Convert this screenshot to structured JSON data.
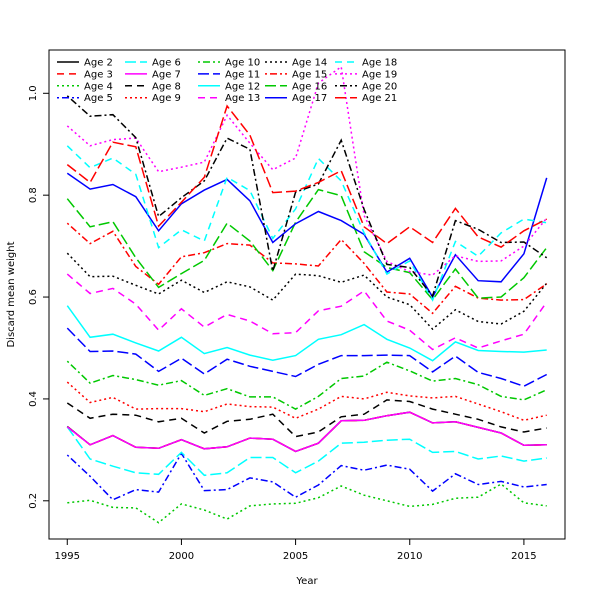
{
  "chart_data": {
    "type": "line",
    "xlabel": "Year",
    "ylabel": "Discard mean weight",
    "xlim": [
      1994.2,
      2016.8
    ],
    "ylim": [
      0.125,
      1.085
    ],
    "xticks": [
      1995,
      2000,
      2005,
      2010,
      2015
    ],
    "yticks": [
      0.2,
      0.4,
      0.6,
      0.8,
      1.0
    ],
    "ytick_labels": [
      "0.2",
      "0.4",
      "0.6",
      "0.8",
      "1.0"
    ],
    "grid": false,
    "legend": "top-left",
    "x": [
      1995,
      1996,
      1997,
      1998,
      1999,
      2000,
      2001,
      2002,
      2003,
      2004,
      2005,
      2006,
      2007,
      2008,
      2009,
      2010,
      2011,
      2012,
      2013,
      2014,
      2015,
      2016
    ],
    "series": [
      {
        "name": "Age 2",
        "color": "#000000",
        "dash": "solid",
        "values": [
          0.346,
          0.31,
          0.328,
          0.305,
          0.303,
          0.32,
          0.302,
          0.306,
          0.323,
          0.321,
          0.297,
          0.313,
          0.357,
          0.358,
          0.367,
          0.374,
          0.353,
          0.355,
          0.344,
          0.333,
          0.309,
          0.31
        ]
      },
      {
        "name": "Age 3",
        "color": "#ff0000",
        "dash": "dashed",
        "values": [
          0.345,
          0.31,
          0.328,
          0.305,
          0.303,
          0.32,
          0.302,
          0.306,
          0.323,
          0.321,
          0.297,
          0.313,
          0.357,
          0.358,
          0.367,
          0.374,
          0.353,
          0.355,
          0.344,
          0.333,
          0.309,
          0.31
        ]
      },
      {
        "name": "Age 4",
        "color": "#00c800",
        "dash": "dotted",
        "values": [
          0.196,
          0.201,
          0.187,
          0.186,
          0.157,
          0.194,
          0.182,
          0.164,
          0.19,
          0.194,
          0.195,
          0.206,
          0.229,
          0.211,
          0.2,
          0.189,
          0.193,
          0.205,
          0.207,
          0.233,
          0.196,
          0.19
        ]
      },
      {
        "name": "Age 5",
        "color": "#0000ff",
        "dash": "dashdot",
        "values": [
          0.29,
          0.248,
          0.202,
          0.222,
          0.217,
          0.293,
          0.22,
          0.222,
          0.245,
          0.237,
          0.207,
          0.231,
          0.269,
          0.26,
          0.27,
          0.262,
          0.219,
          0.253,
          0.232,
          0.238,
          0.227,
          0.232
        ]
      },
      {
        "name": "Age 6",
        "color": "#00ffff",
        "dash": "longdash",
        "values": [
          0.345,
          0.282,
          0.268,
          0.255,
          0.252,
          0.295,
          0.25,
          0.255,
          0.285,
          0.285,
          0.255,
          0.278,
          0.313,
          0.315,
          0.319,
          0.321,
          0.295,
          0.297,
          0.282,
          0.288,
          0.278,
          0.284
        ]
      },
      {
        "name": "Age 7",
        "color": "#ff00ff",
        "dash": "solid",
        "values": [
          0.345,
          0.31,
          0.328,
          0.305,
          0.303,
          0.32,
          0.302,
          0.306,
          0.323,
          0.321,
          0.297,
          0.313,
          0.357,
          0.358,
          0.367,
          0.374,
          0.353,
          0.355,
          0.344,
          0.333,
          0.309,
          0.31
        ]
      },
      {
        "name": "Age 8",
        "color": "#000000",
        "dash": "dashed",
        "values": [
          0.392,
          0.362,
          0.37,
          0.368,
          0.355,
          0.362,
          0.333,
          0.356,
          0.36,
          0.37,
          0.326,
          0.335,
          0.365,
          0.37,
          0.398,
          0.395,
          0.38,
          0.37,
          0.36,
          0.345,
          0.335,
          0.343
        ]
      },
      {
        "name": "Age 9",
        "color": "#ff0000",
        "dash": "dotted",
        "values": [
          0.433,
          0.393,
          0.403,
          0.38,
          0.381,
          0.381,
          0.375,
          0.39,
          0.385,
          0.384,
          0.362,
          0.38,
          0.405,
          0.4,
          0.413,
          0.406,
          0.402,
          0.405,
          0.39,
          0.375,
          0.358,
          0.368
        ]
      },
      {
        "name": "Age 10",
        "color": "#00c800",
        "dash": "dashdot",
        "values": [
          0.474,
          0.431,
          0.446,
          0.438,
          0.427,
          0.436,
          0.407,
          0.42,
          0.404,
          0.404,
          0.38,
          0.405,
          0.44,
          0.445,
          0.472,
          0.455,
          0.435,
          0.44,
          0.428,
          0.405,
          0.398,
          0.418
        ]
      },
      {
        "name": "Age 11",
        "color": "#0000ff",
        "dash": "longdash",
        "values": [
          0.539,
          0.493,
          0.494,
          0.488,
          0.454,
          0.48,
          0.449,
          0.478,
          0.464,
          0.454,
          0.444,
          0.468,
          0.485,
          0.485,
          0.486,
          0.485,
          0.453,
          0.484,
          0.452,
          0.44,
          0.425,
          0.448
        ]
      },
      {
        "name": "Age 12",
        "color": "#00ffff",
        "dash": "solid",
        "values": [
          0.583,
          0.521,
          0.527,
          0.51,
          0.494,
          0.521,
          0.489,
          0.501,
          0.486,
          0.476,
          0.485,
          0.517,
          0.526,
          0.546,
          0.517,
          0.5,
          0.475,
          0.512,
          0.495,
          0.493,
          0.492,
          0.496
        ]
      },
      {
        "name": "Age 13",
        "color": "#ff00ff",
        "dash": "dashed",
        "values": [
          0.645,
          0.607,
          0.617,
          0.586,
          0.535,
          0.577,
          0.541,
          0.566,
          0.553,
          0.528,
          0.53,
          0.573,
          0.582,
          0.612,
          0.553,
          0.535,
          0.497,
          0.52,
          0.5,
          0.514,
          0.527,
          0.59
        ]
      },
      {
        "name": "Age 14",
        "color": "#000000",
        "dash": "dotted",
        "values": [
          0.686,
          0.64,
          0.641,
          0.623,
          0.606,
          0.633,
          0.609,
          0.63,
          0.62,
          0.594,
          0.645,
          0.642,
          0.629,
          0.643,
          0.6,
          0.585,
          0.537,
          0.575,
          0.552,
          0.547,
          0.572,
          0.627
        ]
      },
      {
        "name": "Age 15",
        "color": "#ff0000",
        "dash": "dashdot",
        "values": [
          0.745,
          0.705,
          0.729,
          0.66,
          0.625,
          0.679,
          0.687,
          0.705,
          0.702,
          0.667,
          0.665,
          0.661,
          0.713,
          0.666,
          0.61,
          0.606,
          0.568,
          0.621,
          0.598,
          0.594,
          0.595,
          0.626
        ]
      },
      {
        "name": "Age 16",
        "color": "#00c800",
        "dash": "longdash",
        "values": [
          0.793,
          0.738,
          0.748,
          0.677,
          0.619,
          0.646,
          0.672,
          0.745,
          0.71,
          0.652,
          0.747,
          0.811,
          0.799,
          0.689,
          0.658,
          0.648,
          0.595,
          0.655,
          0.598,
          0.6,
          0.638,
          0.697
        ]
      },
      {
        "name": "Age 17",
        "color": "#0000ff",
        "dash": "solid",
        "values": [
          0.843,
          0.812,
          0.821,
          0.797,
          0.73,
          0.783,
          0.81,
          0.831,
          0.789,
          0.707,
          0.744,
          0.768,
          0.75,
          0.723,
          0.649,
          0.676,
          0.6,
          0.683,
          0.632,
          0.63,
          0.685,
          0.834
        ]
      },
      {
        "name": "Age 18",
        "color": "#00ffff",
        "dash": "dashed",
        "values": [
          0.897,
          0.854,
          0.873,
          0.841,
          0.697,
          0.732,
          0.71,
          0.835,
          0.809,
          0.715,
          0.773,
          0.872,
          0.828,
          0.726,
          0.645,
          0.671,
          0.594,
          0.709,
          0.68,
          0.726,
          0.753,
          0.746
        ]
      },
      {
        "name": "Age 19",
        "color": "#ff00ff",
        "dash": "dotted",
        "values": [
          0.936,
          0.897,
          0.909,
          0.912,
          0.846,
          0.855,
          0.865,
          0.957,
          0.902,
          0.85,
          0.873,
          1.02,
          1.052,
          0.76,
          0.67,
          0.65,
          0.643,
          0.681,
          0.67,
          0.671,
          0.7,
          0.755
        ]
      },
      {
        "name": "Age 20",
        "color": "#000000",
        "dash": "dashdot",
        "values": [
          0.995,
          0.955,
          0.958,
          0.913,
          0.758,
          0.795,
          0.828,
          0.912,
          0.89,
          0.651,
          0.806,
          0.822,
          0.908,
          0.772,
          0.664,
          0.658,
          0.602,
          0.75,
          0.733,
          0.707,
          0.708,
          0.677
        ]
      },
      {
        "name": "Age 21",
        "color": "#ff0000",
        "dash": "longdash",
        "values": [
          0.86,
          0.825,
          0.904,
          0.895,
          0.739,
          0.786,
          0.835,
          0.975,
          0.918,
          0.805,
          0.808,
          0.825,
          0.848,
          0.738,
          0.705,
          0.738,
          0.707,
          0.774,
          0.718,
          0.698,
          0.73,
          0.753
        ]
      }
    ]
  }
}
